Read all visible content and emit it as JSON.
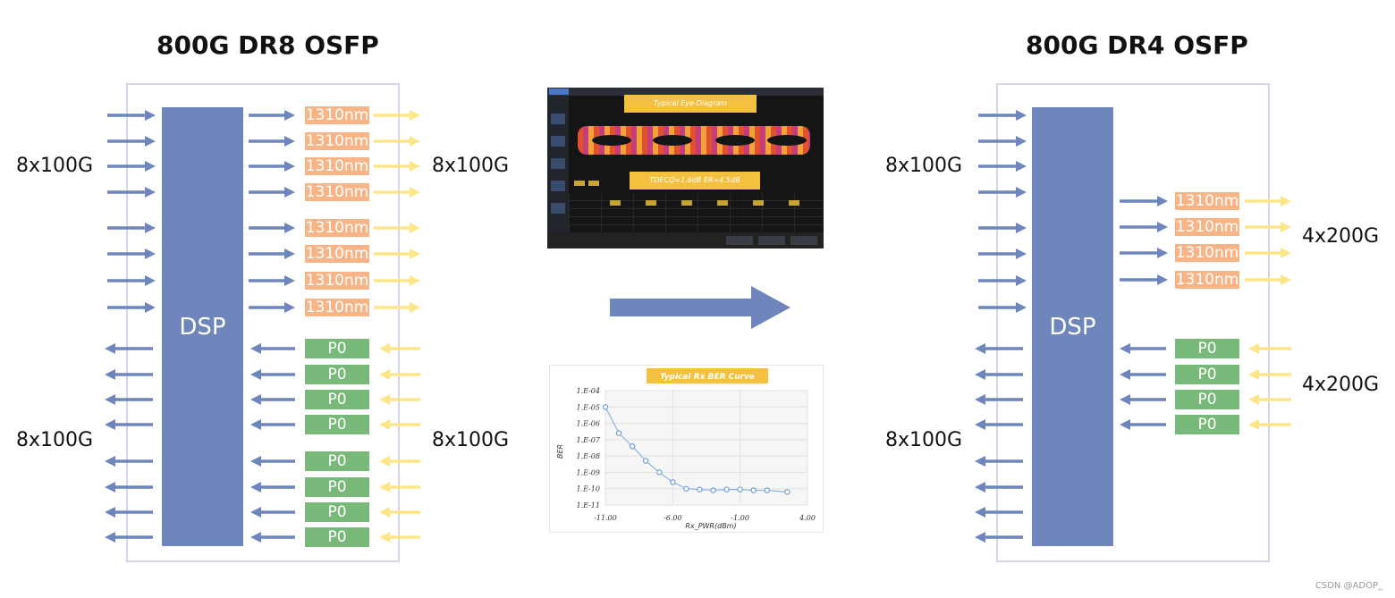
{
  "left": {
    "title": "800G DR8 OSFP",
    "dsp_label": "DSP",
    "tx_rate_in": "8x100G",
    "tx_rate_out": "8x100G",
    "rx_rate_in": "8x100G",
    "rx_rate_out": "8x100G",
    "tx_lanes": [
      "1310nm",
      "1310nm",
      "1310nm",
      "1310nm",
      "1310nm",
      "1310nm",
      "1310nm",
      "1310nm"
    ],
    "rx_lanes": [
      "P0",
      "P0",
      "P0",
      "P0",
      "P0",
      "P0",
      "P0",
      "P0"
    ]
  },
  "right": {
    "title": "800G DR4 OSFP",
    "dsp_label": "DSP",
    "tx_rate_in": "8x100G",
    "tx_rate_out": "4x200G",
    "rx_rate_in": "4x200G",
    "rx_rate_out": "8x100G",
    "tx_lanes": [
      "1310nm",
      "1310nm",
      "1310nm",
      "1310nm"
    ],
    "rx_lanes": [
      "P0",
      "P0",
      "P0",
      "P0"
    ]
  },
  "eye_diagram": {
    "banner_top": "Typical Eye-Diagram",
    "banner_bottom": "TDECQ=1.6dB ER=4.5dB"
  },
  "ber_curve": {
    "title": "Typical Rx BER Curve",
    "xlabel": "Rx_PWR(dBm)",
    "ylabel": "BER",
    "y_ticks": [
      "1.E-04",
      "1.E-05",
      "1.E-06",
      "1.E-07",
      "1.E-08",
      "1.E-09",
      "1.E-10",
      "1.E-11"
    ],
    "x_ticks": [
      "-11.00",
      "-6.00",
      "-1.00",
      "4.00"
    ],
    "x_range": [
      -11,
      4
    ],
    "y_exp_range": [
      -4,
      -11
    ],
    "points": [
      {
        "x": -11.0,
        "y_exp": -5.0
      },
      {
        "x": -10.0,
        "y_exp": -6.6
      },
      {
        "x": -9.0,
        "y_exp": -7.4
      },
      {
        "x": -8.0,
        "y_exp": -8.3
      },
      {
        "x": -7.0,
        "y_exp": -9.0
      },
      {
        "x": -6.0,
        "y_exp": -9.6
      },
      {
        "x": -5.0,
        "y_exp": -10.0
      },
      {
        "x": -4.0,
        "y_exp": -10.05
      },
      {
        "x": -3.0,
        "y_exp": -10.1
      },
      {
        "x": -2.0,
        "y_exp": -10.05
      },
      {
        "x": -1.0,
        "y_exp": -10.05
      },
      {
        "x": 0.0,
        "y_exp": -10.1
      },
      {
        "x": 1.0,
        "y_exp": -10.1
      },
      {
        "x": 2.5,
        "y_exp": -10.2
      }
    ]
  },
  "colors": {
    "dsp": "#6f86bd",
    "arrow_blue": "#6f86bd",
    "arrow_yellow": "#fde68a",
    "tx_label": "#f6b487",
    "rx_label": "#78b97a",
    "module_border": "#d6d6ea"
  },
  "watermark": "CSDN @ADOP_"
}
